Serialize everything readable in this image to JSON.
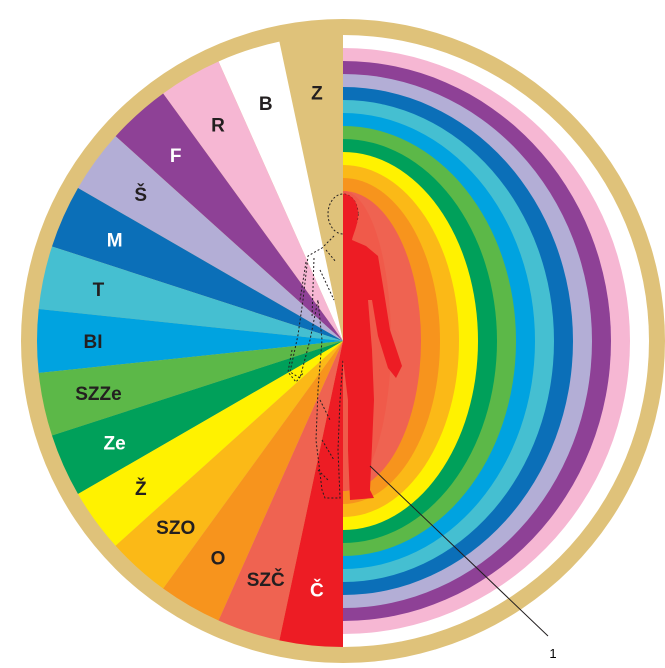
{
  "diagram": {
    "frame_color": "#dfc27a",
    "left_sectors": [
      {
        "label": "Z",
        "color": "#dfc27a",
        "text_color": "#231f20"
      },
      {
        "label": "B",
        "color": "#ffffff",
        "text_color": "#231f20"
      },
      {
        "label": "R",
        "color": "#f6b7d3",
        "text_color": "#231f20"
      },
      {
        "label": "F",
        "color": "#8e4196",
        "text_color": "#ffffff"
      },
      {
        "label": "Š",
        "color": "#b3aed6",
        "text_color": "#231f20"
      },
      {
        "label": "M",
        "color": "#0b6fb8",
        "text_color": "#ffffff"
      },
      {
        "label": "T",
        "color": "#45bfd1",
        "text_color": "#231f20"
      },
      {
        "label": "BI",
        "color": "#00a3e0",
        "text_color": "#231f20"
      },
      {
        "label": "SZZe",
        "color": "#5cb848",
        "text_color": "#231f20"
      },
      {
        "label": "Ze",
        "color": "#00a05a",
        "text_color": "#ffffff"
      },
      {
        "label": "Ž",
        "color": "#fff200",
        "text_color": "#231f20"
      },
      {
        "label": "SZO",
        "color": "#fbb917",
        "text_color": "#231f20"
      },
      {
        "label": "O",
        "color": "#f7941d",
        "text_color": "#231f20"
      },
      {
        "label": "SZČ",
        "color": "#ef6351",
        "text_color": "#231f20"
      },
      {
        "label": "Č",
        "color": "#ed1c24",
        "text_color": "#ffffff"
      }
    ],
    "right_bands_outer_to_inner": [
      "#ffffff",
      "#f6b7d3",
      "#8e4196",
      "#b3aed6",
      "#0b6fb8",
      "#45bfd1",
      "#00a3e0",
      "#5cb848",
      "#00a05a",
      "#fff200",
      "#fbb917",
      "#f7941d",
      "#ef6351"
    ],
    "figure_color": "#ed1c24",
    "callout_label": "1"
  }
}
